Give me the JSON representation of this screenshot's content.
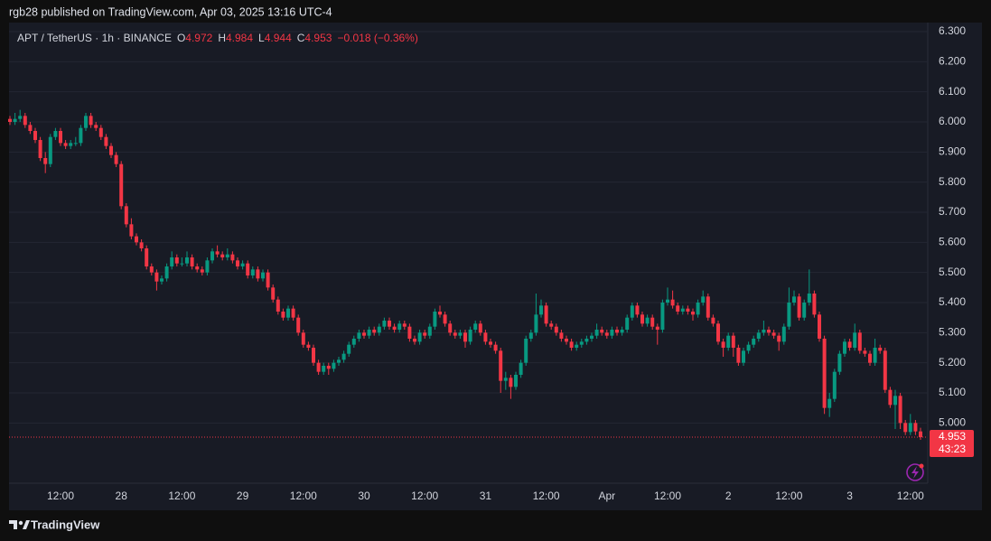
{
  "header": {
    "publisher": "rgb28 published on TradingView.com, Apr 03, 2025 13:16 UTC-4"
  },
  "chart_data": {
    "type": "candlestick",
    "symbol": "APT / TetherUS · 1h · BINANCE",
    "legend_labels": {
      "open": "O",
      "high": "H",
      "low": "L",
      "close": "C"
    },
    "change": "−0.018 (−0.36%)",
    "countdown": "43:23",
    "up_color": "#089981",
    "down_color": "#f23645",
    "grid": true,
    "ylim": [
      4.8,
      6.33
    ],
    "yticks": [
      {
        "value": 5.0,
        "label": "5.000"
      },
      {
        "value": 5.1,
        "label": "5.100"
      },
      {
        "value": 5.2,
        "label": "5.200"
      },
      {
        "value": 5.3,
        "label": "5.300"
      },
      {
        "value": 5.4,
        "label": "5.400"
      },
      {
        "value": 5.5,
        "label": "5.500"
      },
      {
        "value": 5.6,
        "label": "5.600"
      },
      {
        "value": 5.7,
        "label": "5.700"
      },
      {
        "value": 5.8,
        "label": "5.800"
      },
      {
        "value": 5.9,
        "label": "5.900"
      },
      {
        "value": 6.0,
        "label": "6.000"
      },
      {
        "value": 6.1,
        "label": "6.100"
      },
      {
        "value": 6.2,
        "label": "6.200"
      },
      {
        "value": 6.3,
        "label": "6.300"
      }
    ],
    "categories": [
      null,
      null,
      null,
      null,
      null,
      null,
      null,
      null,
      null,
      null,
      "12:00",
      null,
      null,
      null,
      null,
      null,
      null,
      null,
      null,
      null,
      null,
      null,
      "28",
      null,
      null,
      null,
      null,
      null,
      null,
      null,
      null,
      null,
      null,
      null,
      "12:00",
      null,
      null,
      null,
      null,
      null,
      null,
      null,
      null,
      null,
      null,
      null,
      "29",
      null,
      null,
      null,
      null,
      null,
      null,
      null,
      null,
      null,
      null,
      null,
      "12:00",
      null,
      null,
      null,
      null,
      null,
      null,
      null,
      null,
      null,
      null,
      null,
      "30",
      null,
      null,
      null,
      null,
      null,
      null,
      null,
      null,
      null,
      null,
      null,
      "12:00",
      null,
      null,
      null,
      null,
      null,
      null,
      null,
      null,
      null,
      null,
      null,
      "31",
      null,
      null,
      null,
      null,
      null,
      null,
      null,
      null,
      null,
      null,
      null,
      "12:00",
      null,
      null,
      null,
      null,
      null,
      null,
      null,
      null,
      null,
      null,
      null,
      "Apr",
      null,
      null,
      null,
      null,
      null,
      null,
      null,
      null,
      null,
      null,
      null,
      "12:00",
      null,
      null,
      null,
      null,
      null,
      null,
      null,
      null,
      null,
      null,
      null,
      "2",
      null,
      null,
      null,
      null,
      null,
      null,
      null,
      null,
      null,
      null,
      null,
      "12:00",
      null,
      null,
      null,
      null,
      null,
      null,
      null,
      null,
      null,
      null,
      null,
      "3",
      null,
      null,
      null,
      null,
      null,
      null,
      null,
      null,
      null,
      null,
      null,
      "12:00",
      null,
      null
    ],
    "ohlc": [
      [
        6.01,
        6.02,
        5.99,
        6.0
      ],
      [
        6.0,
        6.03,
        5.99,
        6.01
      ],
      [
        6.01,
        6.04,
        6.0,
        6.02
      ],
      [
        6.02,
        6.03,
        5.98,
        5.99
      ],
      [
        5.99,
        6.0,
        5.96,
        5.97
      ],
      [
        5.97,
        5.98,
        5.93,
        5.94
      ],
      [
        5.94,
        5.95,
        5.87,
        5.88
      ],
      [
        5.88,
        5.9,
        5.83,
        5.86
      ],
      [
        5.86,
        5.96,
        5.85,
        5.95
      ],
      [
        5.95,
        5.98,
        5.94,
        5.97
      ],
      [
        5.97,
        5.98,
        5.92,
        5.93
      ],
      [
        5.93,
        5.94,
        5.91,
        5.92
      ],
      [
        5.92,
        5.94,
        5.91,
        5.93
      ],
      [
        5.93,
        5.95,
        5.92,
        5.93
      ],
      [
        5.93,
        5.99,
        5.92,
        5.98
      ],
      [
        5.98,
        6.03,
        5.97,
        6.02
      ],
      [
        6.02,
        6.03,
        5.98,
        5.99
      ],
      [
        5.99,
        6.0,
        5.97,
        5.98
      ],
      [
        5.98,
        5.99,
        5.94,
        5.95
      ],
      [
        5.95,
        5.96,
        5.91,
        5.92
      ],
      [
        5.92,
        5.93,
        5.88,
        5.89
      ],
      [
        5.89,
        5.9,
        5.85,
        5.86
      ],
      [
        5.86,
        5.87,
        5.71,
        5.72
      ],
      [
        5.72,
        5.73,
        5.65,
        5.66
      ],
      [
        5.66,
        5.68,
        5.61,
        5.62
      ],
      [
        5.62,
        5.63,
        5.59,
        5.6
      ],
      [
        5.6,
        5.61,
        5.57,
        5.58
      ],
      [
        5.58,
        5.59,
        5.51,
        5.52
      ],
      [
        5.52,
        5.53,
        5.49,
        5.5
      ],
      [
        5.5,
        5.51,
        5.44,
        5.47
      ],
      [
        5.47,
        5.49,
        5.46,
        5.48
      ],
      [
        5.48,
        5.53,
        5.47,
        5.52
      ],
      [
        5.52,
        5.57,
        5.51,
        5.55
      ],
      [
        5.55,
        5.56,
        5.52,
        5.53
      ],
      [
        5.53,
        5.55,
        5.52,
        5.53
      ],
      [
        5.53,
        5.57,
        5.52,
        5.55
      ],
      [
        5.55,
        5.56,
        5.51,
        5.52
      ],
      [
        5.52,
        5.53,
        5.5,
        5.51
      ],
      [
        5.51,
        5.52,
        5.49,
        5.5
      ],
      [
        5.5,
        5.55,
        5.49,
        5.54
      ],
      [
        5.54,
        5.58,
        5.53,
        5.57
      ],
      [
        5.57,
        5.59,
        5.55,
        5.56
      ],
      [
        5.56,
        5.57,
        5.54,
        5.55
      ],
      [
        5.55,
        5.58,
        5.54,
        5.56
      ],
      [
        5.56,
        5.57,
        5.53,
        5.54
      ],
      [
        5.54,
        5.55,
        5.51,
        5.52
      ],
      [
        5.52,
        5.54,
        5.51,
        5.53
      ],
      [
        5.53,
        5.54,
        5.48,
        5.49
      ],
      [
        5.49,
        5.52,
        5.48,
        5.51
      ],
      [
        5.51,
        5.52,
        5.47,
        5.48
      ],
      [
        5.48,
        5.51,
        5.47,
        5.5
      ],
      [
        5.5,
        5.51,
        5.44,
        5.45
      ],
      [
        5.45,
        5.46,
        5.4,
        5.41
      ],
      [
        5.41,
        5.42,
        5.36,
        5.37
      ],
      [
        5.37,
        5.38,
        5.34,
        5.35
      ],
      [
        5.35,
        5.39,
        5.34,
        5.38
      ],
      [
        5.38,
        5.39,
        5.34,
        5.35
      ],
      [
        5.35,
        5.36,
        5.29,
        5.3
      ],
      [
        5.3,
        5.31,
        5.25,
        5.26
      ],
      [
        5.26,
        5.27,
        5.24,
        5.25
      ],
      [
        5.25,
        5.26,
        5.19,
        5.2
      ],
      [
        5.2,
        5.21,
        5.16,
        5.17
      ],
      [
        5.17,
        5.2,
        5.16,
        5.19
      ],
      [
        5.19,
        5.2,
        5.16,
        5.18
      ],
      [
        5.18,
        5.21,
        5.17,
        5.2
      ],
      [
        5.2,
        5.22,
        5.19,
        5.21
      ],
      [
        5.21,
        5.24,
        5.2,
        5.23
      ],
      [
        5.23,
        5.27,
        5.22,
        5.26
      ],
      [
        5.26,
        5.29,
        5.25,
        5.28
      ],
      [
        5.28,
        5.31,
        5.27,
        5.3
      ],
      [
        5.3,
        5.31,
        5.28,
        5.29
      ],
      [
        5.29,
        5.32,
        5.28,
        5.31
      ],
      [
        5.31,
        5.32,
        5.29,
        5.3
      ],
      [
        5.3,
        5.33,
        5.29,
        5.32
      ],
      [
        5.32,
        5.35,
        5.31,
        5.34
      ],
      [
        5.34,
        5.35,
        5.31,
        5.32
      ],
      [
        5.32,
        5.33,
        5.3,
        5.31
      ],
      [
        5.31,
        5.34,
        5.3,
        5.33
      ],
      [
        5.33,
        5.34,
        5.31,
        5.32
      ],
      [
        5.32,
        5.33,
        5.27,
        5.28
      ],
      [
        5.28,
        5.29,
        5.26,
        5.27
      ],
      [
        5.27,
        5.31,
        5.26,
        5.3
      ],
      [
        5.3,
        5.31,
        5.28,
        5.29
      ],
      [
        5.29,
        5.33,
        5.28,
        5.32
      ],
      [
        5.32,
        5.38,
        5.31,
        5.37
      ],
      [
        5.37,
        5.39,
        5.35,
        5.36
      ],
      [
        5.36,
        5.37,
        5.32,
        5.33
      ],
      [
        5.33,
        5.34,
        5.29,
        5.3
      ],
      [
        5.3,
        5.31,
        5.28,
        5.29
      ],
      [
        5.29,
        5.31,
        5.28,
        5.3
      ],
      [
        5.3,
        5.31,
        5.25,
        5.27
      ],
      [
        5.27,
        5.32,
        5.26,
        5.31
      ],
      [
        5.31,
        5.34,
        5.3,
        5.33
      ],
      [
        5.33,
        5.34,
        5.29,
        5.3
      ],
      [
        5.3,
        5.31,
        5.26,
        5.27
      ],
      [
        5.27,
        5.28,
        5.25,
        5.26
      ],
      [
        5.26,
        5.27,
        5.23,
        5.24
      ],
      [
        5.24,
        5.25,
        5.1,
        5.14
      ],
      [
        5.14,
        5.17,
        5.11,
        5.15
      ],
      [
        5.15,
        5.16,
        5.08,
        5.12
      ],
      [
        5.12,
        5.17,
        5.11,
        5.16
      ],
      [
        5.16,
        5.21,
        5.15,
        5.2
      ],
      [
        5.2,
        5.29,
        5.19,
        5.28
      ],
      [
        5.28,
        5.31,
        5.27,
        5.3
      ],
      [
        5.3,
        5.43,
        5.29,
        5.36
      ],
      [
        5.36,
        5.41,
        5.35,
        5.39
      ],
      [
        5.39,
        5.4,
        5.32,
        5.33
      ],
      [
        5.33,
        5.34,
        5.31,
        5.32
      ],
      [
        5.32,
        5.33,
        5.29,
        5.3
      ],
      [
        5.3,
        5.31,
        5.27,
        5.28
      ],
      [
        5.28,
        5.29,
        5.26,
        5.27
      ],
      [
        5.27,
        5.28,
        5.24,
        5.25
      ],
      [
        5.25,
        5.27,
        5.24,
        5.26
      ],
      [
        5.26,
        5.28,
        5.25,
        5.27
      ],
      [
        5.27,
        5.29,
        5.26,
        5.28
      ],
      [
        5.28,
        5.3,
        5.27,
        5.29
      ],
      [
        5.29,
        5.33,
        5.28,
        5.31
      ],
      [
        5.31,
        5.32,
        5.29,
        5.3
      ],
      [
        5.3,
        5.31,
        5.28,
        5.29
      ],
      [
        5.29,
        5.32,
        5.28,
        5.31
      ],
      [
        5.31,
        5.32,
        5.29,
        5.3
      ],
      [
        5.3,
        5.32,
        5.29,
        5.31
      ],
      [
        5.31,
        5.36,
        5.3,
        5.35
      ],
      [
        5.35,
        5.4,
        5.34,
        5.39
      ],
      [
        5.39,
        5.4,
        5.35,
        5.36
      ],
      [
        5.36,
        5.37,
        5.32,
        5.33
      ],
      [
        5.33,
        5.36,
        5.32,
        5.35
      ],
      [
        5.35,
        5.36,
        5.31,
        5.32
      ],
      [
        5.32,
        5.33,
        5.26,
        5.31
      ],
      [
        5.31,
        5.41,
        5.3,
        5.4
      ],
      [
        5.4,
        5.45,
        5.39,
        5.41
      ],
      [
        5.41,
        5.44,
        5.38,
        5.39
      ],
      [
        5.39,
        5.4,
        5.36,
        5.37
      ],
      [
        5.37,
        5.39,
        5.36,
        5.38
      ],
      [
        5.38,
        5.39,
        5.36,
        5.37
      ],
      [
        5.37,
        5.38,
        5.34,
        5.36
      ],
      [
        5.36,
        5.41,
        5.35,
        5.4
      ],
      [
        5.4,
        5.44,
        5.39,
        5.42
      ],
      [
        5.42,
        5.43,
        5.34,
        5.35
      ],
      [
        5.35,
        5.36,
        5.32,
        5.33
      ],
      [
        5.33,
        5.34,
        5.26,
        5.27
      ],
      [
        5.27,
        5.28,
        5.22,
        5.25
      ],
      [
        5.25,
        5.3,
        5.24,
        5.29
      ],
      [
        5.29,
        5.3,
        5.22,
        5.25
      ],
      [
        5.25,
        5.26,
        5.19,
        5.2
      ],
      [
        5.2,
        5.25,
        5.19,
        5.24
      ],
      [
        5.24,
        5.27,
        5.23,
        5.26
      ],
      [
        5.26,
        5.29,
        5.25,
        5.28
      ],
      [
        5.28,
        5.31,
        5.27,
        5.3
      ],
      [
        5.3,
        5.34,
        5.29,
        5.31
      ],
      [
        5.31,
        5.32,
        5.29,
        5.3
      ],
      [
        5.3,
        5.31,
        5.28,
        5.29
      ],
      [
        5.29,
        5.3,
        5.24,
        5.27
      ],
      [
        5.27,
        5.33,
        5.26,
        5.32
      ],
      [
        5.32,
        5.45,
        5.31,
        5.4
      ],
      [
        5.4,
        5.44,
        5.39,
        5.42
      ],
      [
        5.42,
        5.43,
        5.34,
        5.35
      ],
      [
        5.35,
        5.41,
        5.34,
        5.4
      ],
      [
        5.4,
        5.51,
        5.39,
        5.43
      ],
      [
        5.43,
        5.44,
        5.35,
        5.36
      ],
      [
        5.36,
        5.37,
        5.27,
        5.28
      ],
      [
        5.28,
        5.29,
        5.03,
        5.05
      ],
      [
        5.05,
        5.1,
        5.02,
        5.08
      ],
      [
        5.08,
        5.18,
        5.07,
        5.17
      ],
      [
        5.17,
        5.24,
        5.16,
        5.23
      ],
      [
        5.23,
        5.28,
        5.22,
        5.27
      ],
      [
        5.27,
        5.28,
        5.24,
        5.25
      ],
      [
        5.25,
        5.33,
        5.24,
        5.3
      ],
      [
        5.3,
        5.31,
        5.23,
        5.24
      ],
      [
        5.24,
        5.25,
        5.22,
        5.23
      ],
      [
        5.23,
        5.24,
        5.19,
        5.2
      ],
      [
        5.2,
        5.28,
        5.19,
        5.25
      ],
      [
        5.25,
        5.26,
        5.23,
        5.24
      ],
      [
        5.24,
        5.25,
        5.1,
        5.11
      ],
      [
        5.11,
        5.12,
        5.05,
        5.06
      ],
      [
        5.06,
        5.11,
        4.98,
        5.09
      ],
      [
        5.09,
        5.1,
        4.98,
        5.0
      ],
      [
        5.0,
        5.01,
        4.96,
        4.97
      ],
      [
        4.97,
        5.03,
        4.96,
        5.0
      ],
      [
        5.0,
        5.01,
        4.96,
        4.972
      ],
      [
        4.972,
        4.984,
        4.944,
        4.953
      ]
    ]
  },
  "footer": {
    "brand": "TradingView"
  }
}
